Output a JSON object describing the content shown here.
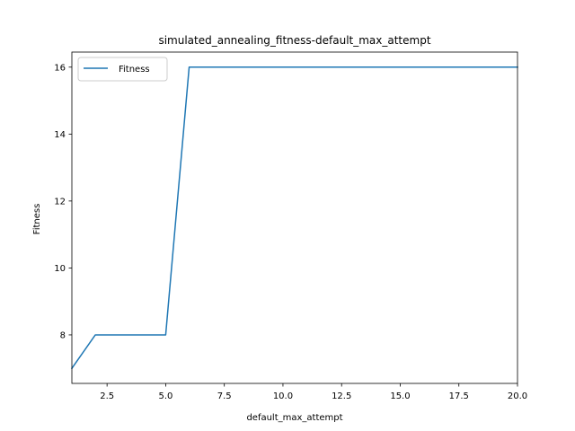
{
  "chart_data": {
    "type": "line",
    "title": "simulated_annealing_fitness-default_max_attempt",
    "xlabel": "default_max_attempt",
    "ylabel": "Fitness",
    "xlim": [
      1,
      20
    ],
    "ylim": [
      6.55,
      16.45
    ],
    "xticks": [
      2.5,
      5.0,
      7.5,
      10.0,
      12.5,
      15.0,
      17.5,
      20.0
    ],
    "xtick_labels": [
      "2.5",
      "5.0",
      "7.5",
      "10.0",
      "12.5",
      "15.0",
      "17.5",
      "20.0"
    ],
    "yticks": [
      8,
      10,
      12,
      14,
      16
    ],
    "ytick_labels": [
      "8",
      "10",
      "12",
      "14",
      "16"
    ],
    "grid": false,
    "legend_position": "top-left",
    "series": [
      {
        "name": "Fitness",
        "color": "#1f77b4",
        "x": [
          1,
          2,
          3,
          4,
          5,
          6,
          7,
          8,
          9,
          10,
          11,
          12,
          13,
          14,
          15,
          16,
          17,
          18,
          19,
          20
        ],
        "y": [
          7,
          8,
          8,
          8,
          8,
          16,
          16,
          16,
          16,
          16,
          16,
          16,
          16,
          16,
          16,
          16,
          16,
          16,
          16,
          16
        ]
      }
    ]
  }
}
